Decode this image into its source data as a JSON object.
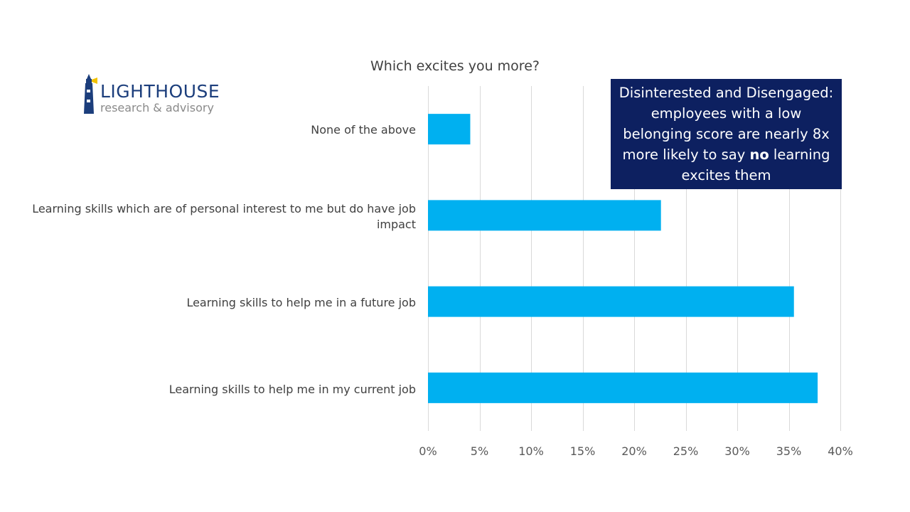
{
  "logo": {
    "title": "LIGHTHOUSE",
    "subtitle": "research & advisory"
  },
  "callout": {
    "text_before": "Disinterested and Disengaged: employees with a low belonging score are nearly 8x more likely to say ",
    "emphasis": "no",
    "text_after": " learning excites them"
  },
  "colors": {
    "bar": "#00b0f0",
    "gridline": "#d9d9d9",
    "callout_bg": "#0d2060",
    "logo_blue": "#1c3e7c"
  },
  "chart_data": {
    "type": "bar",
    "orientation": "horizontal",
    "title": "Which excites you more?",
    "categories": [
      "None of the above",
      "Learning skills which are of personal interest to me but do have job impact",
      "Learning skills to help me in a future job",
      "Learning skills to help me in my current job"
    ],
    "values": [
      4.1,
      22.6,
      35.5,
      37.8
    ],
    "xlim": [
      0,
      40
    ],
    "xticks": [
      "0%",
      "5%",
      "10%",
      "15%",
      "20%",
      "25%",
      "30%",
      "35%",
      "40%"
    ],
    "grid": "vertical",
    "legend": "none"
  }
}
